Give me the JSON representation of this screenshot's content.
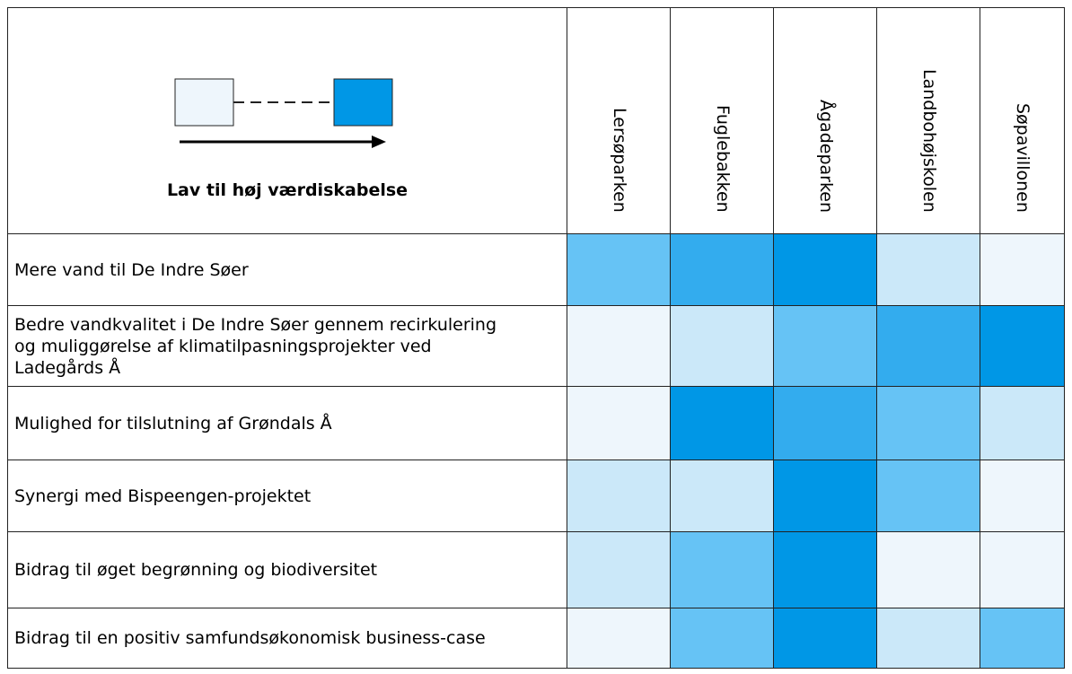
{
  "table": {
    "legend": {
      "label": "Lav til høj værdiskabelse",
      "low_color": "#eef6fc",
      "high_color": "#0097e6"
    },
    "columns": [
      "Lersøparken",
      "Fuglebakken",
      "Ågadeparken",
      "Landbohøjskolen",
      "Søpavillonen"
    ],
    "rows": [
      {
        "label": "Mere vand til De Indre Søer",
        "colors": [
          "#66c3f5",
          "#33acee",
          "#0097e6",
          "#cbe8f9",
          "#eef6fc"
        ]
      },
      {
        "label": "Bedre vandkvalitet i De Indre Søer gennem recirkulering og muliggørelse af klimatilpasningsprojekter ved Ladegårds Å",
        "colors": [
          "#eef6fc",
          "#cbe8f9",
          "#66c3f5",
          "#33acee",
          "#0097e6"
        ]
      },
      {
        "label": "Mulighed for tilslutning af Grøndals Å",
        "colors": [
          "#eef6fc",
          "#0097e6",
          "#33acee",
          "#66c3f5",
          "#cbe8f9"
        ]
      },
      {
        "label": "Synergi med Bispeengen-projektet",
        "colors": [
          "#cbe8f9",
          "#cbe8f9",
          "#0097e6",
          "#66c3f5",
          "#eef6fc"
        ]
      },
      {
        "label": "Bidrag til øget begrønning og biodiversitet",
        "colors": [
          "#cbe8f9",
          "#66c3f5",
          "#0097e6",
          "#eef6fc",
          "#eef6fc"
        ]
      },
      {
        "label": "Bidrag til en positiv samfundsøkonomisk business-case",
        "colors": [
          "#eef6fc",
          "#66c3f5",
          "#0097e6",
          "#cbe8f9",
          "#66c3f5"
        ]
      }
    ]
  }
}
